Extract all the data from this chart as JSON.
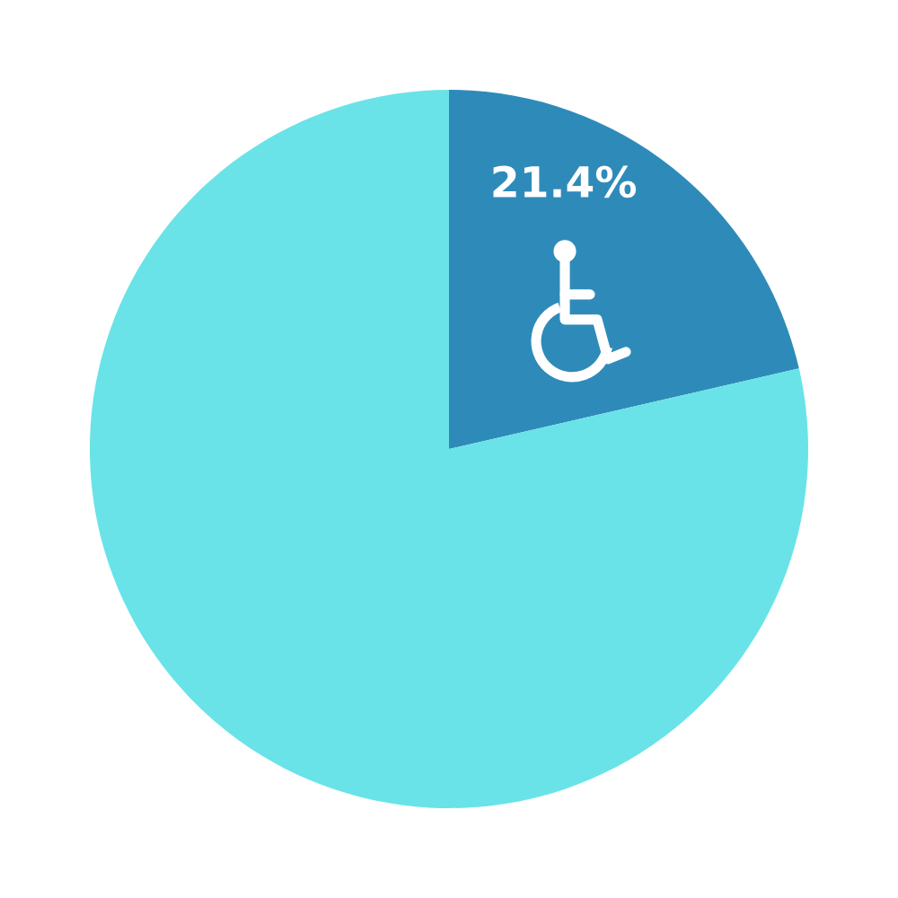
{
  "chart_data": {
    "type": "pie",
    "categories": [
      null,
      null
    ],
    "values": [
      21.4,
      78.6
    ],
    "colors": [
      "#2e8bb9",
      "#69e3e8"
    ],
    "value_labels": [
      "21.4%",
      null
    ]
  }
}
